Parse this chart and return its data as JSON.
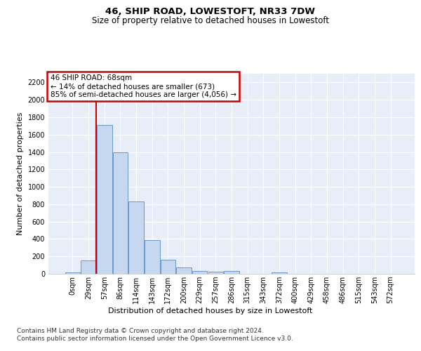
{
  "title": "46, SHIP ROAD, LOWESTOFT, NR33 7DW",
  "subtitle": "Size of property relative to detached houses in Lowestoft",
  "xlabel": "Distribution of detached houses by size in Lowestoft",
  "ylabel": "Number of detached properties",
  "bar_labels": [
    "0sqm",
    "29sqm",
    "57sqm",
    "86sqm",
    "114sqm",
    "143sqm",
    "172sqm",
    "200sqm",
    "229sqm",
    "257sqm",
    "286sqm",
    "315sqm",
    "343sqm",
    "372sqm",
    "400sqm",
    "429sqm",
    "458sqm",
    "486sqm",
    "515sqm",
    "543sqm",
    "572sqm"
  ],
  "bar_values": [
    15,
    155,
    1710,
    1395,
    830,
    390,
    165,
    70,
    35,
    28,
    30,
    0,
    0,
    15,
    0,
    0,
    0,
    0,
    0,
    0,
    0
  ],
  "bar_color": "#c5d8f0",
  "bar_edge_color": "#6699cc",
  "vline_x": 1.5,
  "vline_color": "#cc0000",
  "annotation_line1": "46 SHIP ROAD: 68sqm",
  "annotation_line2": "← 14% of detached houses are smaller (673)",
  "annotation_line3": "85% of semi-detached houses are larger (4,056) →",
  "annotation_box_edge_color": "#cc0000",
  "ylim": [
    0,
    2300
  ],
  "yticks": [
    0,
    200,
    400,
    600,
    800,
    1000,
    1200,
    1400,
    1600,
    1800,
    2000,
    2200
  ],
  "plot_bg_color": "#e8eef8",
  "grid_color": "#ffffff",
  "footer_line1": "Contains HM Land Registry data © Crown copyright and database right 2024.",
  "footer_line2": "Contains public sector information licensed under the Open Government Licence v3.0.",
  "title_fontsize": 9.5,
  "subtitle_fontsize": 8.5,
  "axis_label_fontsize": 8,
  "tick_fontsize": 7,
  "annotation_fontsize": 7.5,
  "footer_fontsize": 6.5
}
